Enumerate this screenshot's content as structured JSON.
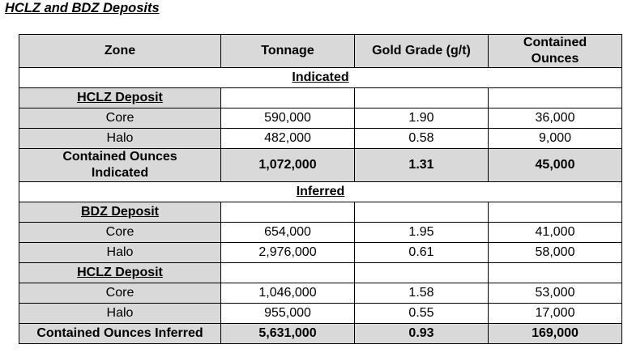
{
  "title": "HCLZ and BDZ Deposits",
  "header": {
    "zone": "Zone",
    "tonnage": "Tonnage",
    "grade": "Gold Grade (g/t)",
    "ounces_line1": "Contained",
    "ounces_line2": "Ounces"
  },
  "indicated": {
    "label": "Indicated",
    "hclz": {
      "label": "HCLZ Deposit",
      "core": {
        "zone": "Core",
        "tonnage": "590,000",
        "grade": "1.90",
        "ounces": "36,000"
      },
      "halo": {
        "zone": "Halo",
        "tonnage": "482,000",
        "grade": "0.58",
        "ounces": "9,000"
      }
    },
    "total": {
      "line1": "Contained Ounces",
      "line2": "Indicated",
      "tonnage": "1,072,000",
      "grade": "1.31",
      "ounces": "45,000"
    }
  },
  "inferred": {
    "label": "Inferred",
    "bdz": {
      "label": "BDZ Deposit",
      "core": {
        "zone": "Core",
        "tonnage": "654,000",
        "grade": "1.95",
        "ounces": "41,000"
      },
      "halo": {
        "zone": "Halo",
        "tonnage": "2,976,000",
        "grade": "0.61",
        "ounces": "58,000"
      }
    },
    "hclz": {
      "label": "HCLZ Deposit",
      "core": {
        "zone": "Core",
        "tonnage": "1,046,000",
        "grade": "1.58",
        "ounces": "53,000"
      },
      "halo": {
        "zone": "Halo",
        "tonnage": "955,000",
        "grade": "0.55",
        "ounces": "17,000"
      }
    },
    "total": {
      "label": "Contained Ounces Inferred",
      "tonnage": "5,631,000",
      "grade": "0.93",
      "ounces": "169,000"
    }
  }
}
